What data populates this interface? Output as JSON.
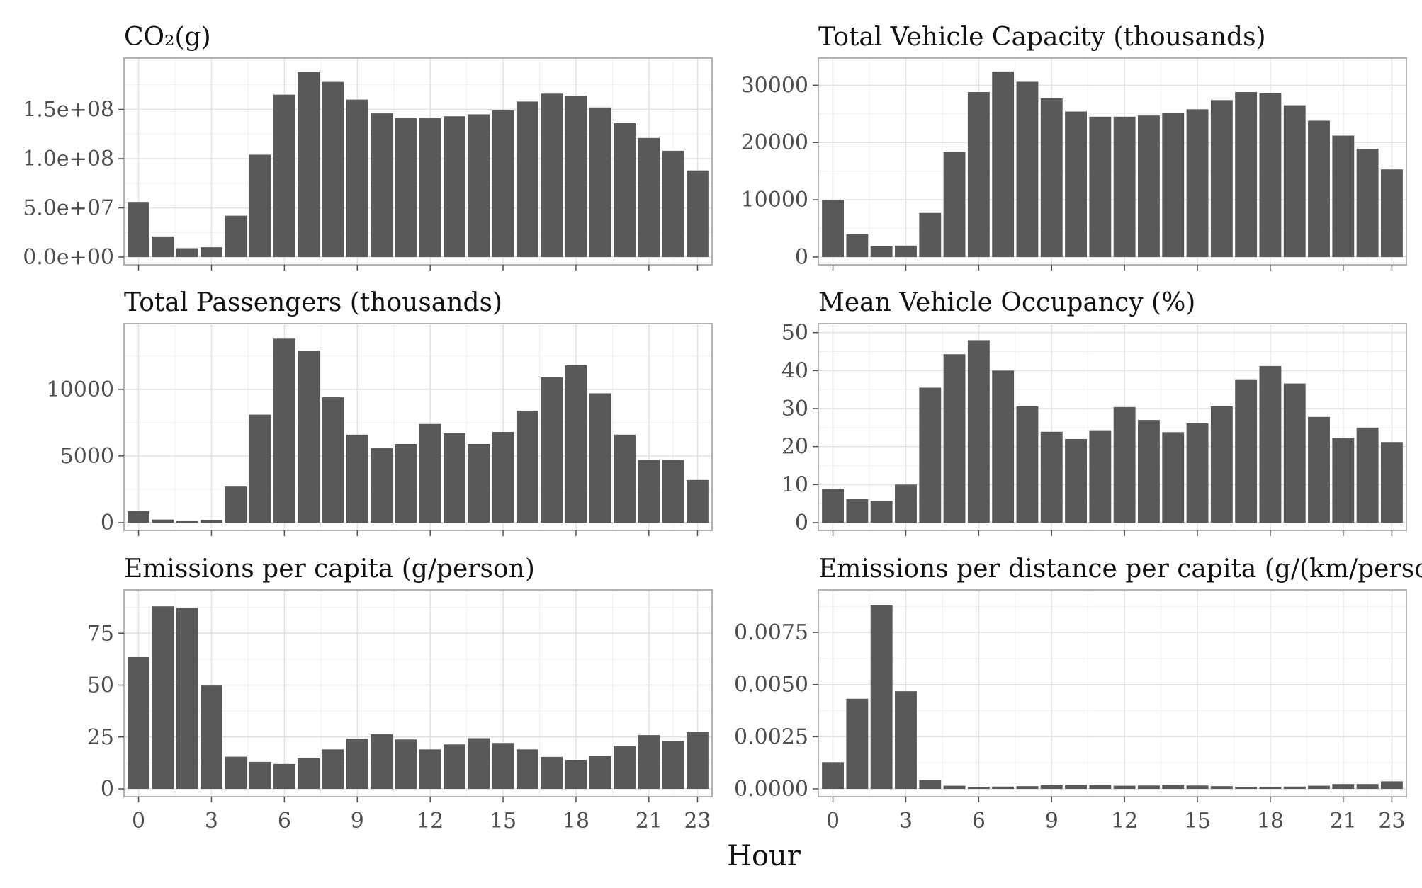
{
  "figure": {
    "xlabel": "Hour"
  },
  "chart_data": [
    {
      "type": "bar",
      "title": "CO₂(g)",
      "x": [
        0,
        1,
        2,
        3,
        4,
        5,
        6,
        7,
        8,
        9,
        10,
        11,
        12,
        13,
        14,
        15,
        16,
        17,
        18,
        19,
        20,
        21,
        22,
        23
      ],
      "values": [
        56000000.0,
        21000000.0,
        9000000.0,
        10000000.0,
        42000000.0,
        104000000.0,
        165000000.0,
        188000000.0,
        178000000.0,
        160000000.0,
        146000000.0,
        141000000.0,
        141000000.0,
        143000000.0,
        145000000.0,
        149000000.0,
        158000000.0,
        166000000.0,
        164000000.0,
        152000000.0,
        136000000.0,
        121000000.0,
        108000000.0,
        88000000.0
      ],
      "ylim": [
        0,
        195000000.0
      ],
      "yticks": [
        0,
        50000000.0,
        100000000.0,
        150000000.0
      ],
      "ytick_labels": [
        "0.0e+00",
        "5.0e+07",
        "1.0e+08",
        "1.5e+08"
      ],
      "xticks": [
        0,
        3,
        6,
        9,
        12,
        15,
        18,
        21,
        23
      ],
      "xtick_labels": [
        "0",
        "3",
        "6",
        "9",
        "12",
        "15",
        "18",
        "21",
        "23"
      ],
      "bar_color": "#595959",
      "grid": true
    },
    {
      "type": "bar",
      "title": "Total Vehicle Capacity (thousands)",
      "x": [
        0,
        1,
        2,
        3,
        4,
        5,
        6,
        7,
        8,
        9,
        10,
        11,
        12,
        13,
        14,
        15,
        16,
        17,
        18,
        19,
        20,
        21,
        22,
        23
      ],
      "values": [
        10000,
        4000,
        1900,
        2000,
        7700,
        18300,
        28800,
        32400,
        30600,
        27700,
        25400,
        24500,
        24500,
        24700,
        25100,
        25800,
        27400,
        28800,
        28600,
        26500,
        23800,
        21200,
        18900,
        15300
      ],
      "ylim": [
        0,
        33500
      ],
      "yticks": [
        0,
        10000,
        20000,
        30000
      ],
      "ytick_labels": [
        "0",
        "10000",
        "20000",
        "30000"
      ],
      "xticks": [
        0,
        3,
        6,
        9,
        12,
        15,
        18,
        21,
        23
      ],
      "xtick_labels": [
        "0",
        "3",
        "6",
        "9",
        "12",
        "15",
        "18",
        "21",
        "23"
      ],
      "bar_color": "#595959",
      "grid": true
    },
    {
      "type": "bar",
      "title": "Total Passengers (thousands)",
      "x": [
        0,
        1,
        2,
        3,
        4,
        5,
        6,
        7,
        8,
        9,
        10,
        11,
        12,
        13,
        14,
        15,
        16,
        17,
        18,
        19,
        20,
        21,
        22,
        23
      ],
      "values": [
        850,
        230,
        110,
        190,
        2700,
        8100,
        13800,
        12900,
        9400,
        6600,
        5600,
        5900,
        7400,
        6700,
        5900,
        6800,
        8400,
        10900,
        11800,
        9700,
        6600,
        4700,
        4700,
        3200
      ],
      "ylim": [
        0,
        14400
      ],
      "yticks": [
        0,
        5000,
        10000
      ],
      "ytick_labels": [
        "0",
        "5000",
        "10000"
      ],
      "xticks": [
        0,
        3,
        6,
        9,
        12,
        15,
        18,
        21,
        23
      ],
      "xtick_labels": [
        "0",
        "3",
        "6",
        "9",
        "12",
        "15",
        "18",
        "21",
        "23"
      ],
      "bar_color": "#595959",
      "grid": true
    },
    {
      "type": "bar",
      "title": "Mean Vehicle Occupancy (%)",
      "x": [
        0,
        1,
        2,
        3,
        4,
        5,
        6,
        7,
        8,
        9,
        10,
        11,
        12,
        13,
        14,
        15,
        16,
        17,
        18,
        19,
        20,
        21,
        22,
        23
      ],
      "values": [
        8.9,
        6.2,
        5.7,
        10.0,
        35.5,
        44.3,
        48.0,
        40.0,
        30.6,
        23.9,
        22.0,
        24.3,
        30.4,
        27.0,
        23.8,
        26.1,
        30.6,
        37.7,
        41.2,
        36.6,
        27.8,
        22.2,
        25.0,
        21.2
      ],
      "ylim": [
        0,
        50.5
      ],
      "yticks": [
        0,
        10,
        20,
        30,
        40,
        50
      ],
      "ytick_labels": [
        "0",
        "10",
        "20",
        "30",
        "40",
        "50"
      ],
      "xticks": [
        0,
        3,
        6,
        9,
        12,
        15,
        18,
        21,
        23
      ],
      "xtick_labels": [
        "0",
        "3",
        "6",
        "9",
        "12",
        "15",
        "18",
        "21",
        "23"
      ],
      "bar_color": "#595959",
      "grid": true
    },
    {
      "type": "bar",
      "title": "Emissions per capita (g/person)",
      "x": [
        0,
        1,
        2,
        3,
        4,
        5,
        6,
        7,
        8,
        9,
        10,
        11,
        12,
        13,
        14,
        15,
        16,
        17,
        18,
        19,
        20,
        21,
        22,
        23
      ],
      "values": [
        63.5,
        88.0,
        87.2,
        49.8,
        15.5,
        13.0,
        12.0,
        14.7,
        19.0,
        24.2,
        26.3,
        23.8,
        19.0,
        21.4,
        24.4,
        22.1,
        19.0,
        15.4,
        14.0,
        15.8,
        20.6,
        25.9,
        23.1,
        27.4
      ],
      "ylim": [
        0,
        92.5
      ],
      "yticks": [
        0,
        25,
        50,
        75
      ],
      "ytick_labels": [
        "0",
        "25",
        "50",
        "75"
      ],
      "xticks": [
        0,
        3,
        6,
        9,
        12,
        15,
        18,
        21,
        23
      ],
      "xtick_labels": [
        "0",
        "3",
        "6",
        "9",
        "12",
        "15",
        "18",
        "21",
        "23"
      ],
      "bar_color": "#595959",
      "grid": true
    },
    {
      "type": "bar",
      "title": "Emissions per distance per capita (g/(km/person))",
      "x": [
        0,
        1,
        2,
        3,
        4,
        5,
        6,
        7,
        8,
        9,
        10,
        11,
        12,
        13,
        14,
        15,
        16,
        17,
        18,
        19,
        20,
        21,
        22,
        23
      ],
      "values": [
        0.00128,
        0.00432,
        0.0088,
        0.00468,
        0.00042,
        0.00015,
        0.0001,
        0.00011,
        0.00013,
        0.00017,
        0.00019,
        0.00018,
        0.00015,
        0.00016,
        0.00018,
        0.00016,
        0.00013,
        0.0001,
        9e-05,
        0.00011,
        0.00015,
        0.00023,
        0.00023,
        0.00036
      ],
      "ylim": [
        0,
        0.0092
      ],
      "yticks": [
        0,
        0.0025,
        0.005,
        0.0075
      ],
      "ytick_labels": [
        "0.0000",
        "0.0025",
        "0.0050",
        "0.0075"
      ],
      "xticks": [
        0,
        3,
        6,
        9,
        12,
        15,
        18,
        21,
        23
      ],
      "xtick_labels": [
        "0",
        "3",
        "6",
        "9",
        "12",
        "15",
        "18",
        "21",
        "23"
      ],
      "bar_color": "#595959",
      "grid": true
    }
  ]
}
